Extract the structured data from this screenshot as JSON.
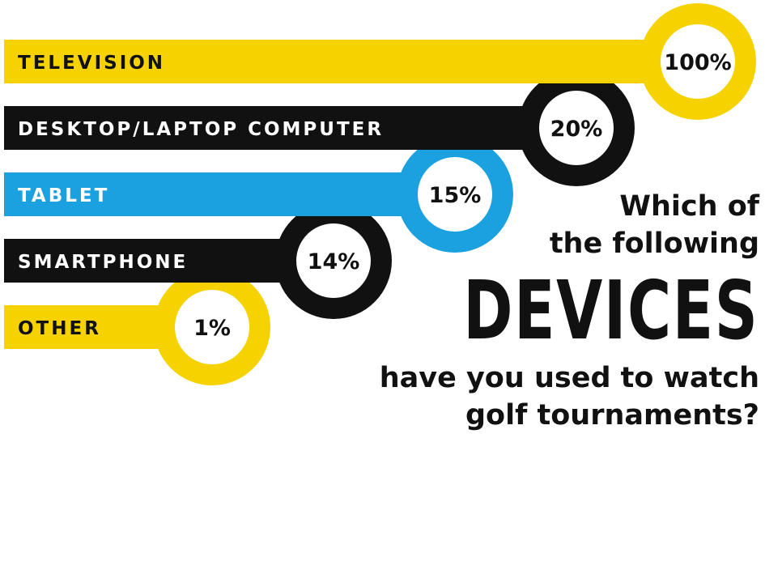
{
  "chart_data": {
    "type": "bar",
    "orientation": "horizontal",
    "categories": [
      "TELEVISION",
      "DESKTOP/LAPTOP COMPUTER",
      "TABLET",
      "SMARTPHONE",
      "OTHER"
    ],
    "values": [
      100,
      20,
      15,
      14,
      1
    ],
    "value_labels": [
      "100%",
      "20%",
      "15%",
      "14%",
      "1%"
    ],
    "colors": [
      "#F6D300",
      "#111111",
      "#1CA1E0",
      "#111111",
      "#F6D300"
    ],
    "label_colors": [
      "#111111",
      "#ffffff",
      "#ffffff",
      "#ffffff",
      "#111111"
    ],
    "title_lines": {
      "line1": "Which of",
      "line2": "the following",
      "emphasis": "DEVICES",
      "line3": "have you used to watch",
      "line4": "golf tournaments?"
    }
  }
}
